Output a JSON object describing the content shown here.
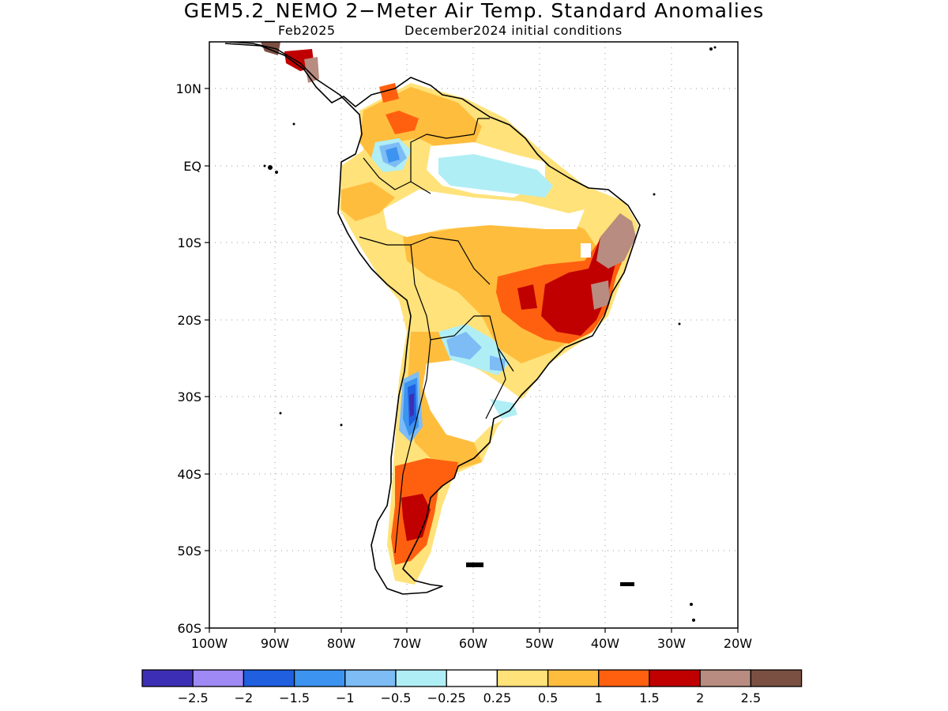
{
  "title": "GEM5.2_NEMO 2−Meter Air Temp. Standard Anomalies",
  "subtitle_left": "Feb2025",
  "subtitle_right": "December2024 initial conditions",
  "lat_ticks": [
    "10N",
    "EQ",
    "10S",
    "20S",
    "30S",
    "40S",
    "50S",
    "60S"
  ],
  "lon_ticks": [
    "100W",
    "90W",
    "80W",
    "70W",
    "60W",
    "50W",
    "40W",
    "30W",
    "20W"
  ],
  "colorbar": {
    "colors": [
      "#3d2fb5",
      "#9f8af5",
      "#1f5fe0",
      "#3d94f0",
      "#7dbcf5",
      "#b0eef5",
      "#ffffff",
      "#ffe27a",
      "#ffbd3d",
      "#ff6010",
      "#c00000",
      "#b88c80",
      "#7a5042"
    ],
    "labels": [
      "−2.5",
      "−2",
      "−1.5",
      "−1",
      "−0.5",
      "−0.25",
      "0.25",
      "0.5",
      "1",
      "1.5",
      "2",
      "2.5"
    ]
  },
  "land_color": "#ffffff",
  "coast_color": "#000000"
}
